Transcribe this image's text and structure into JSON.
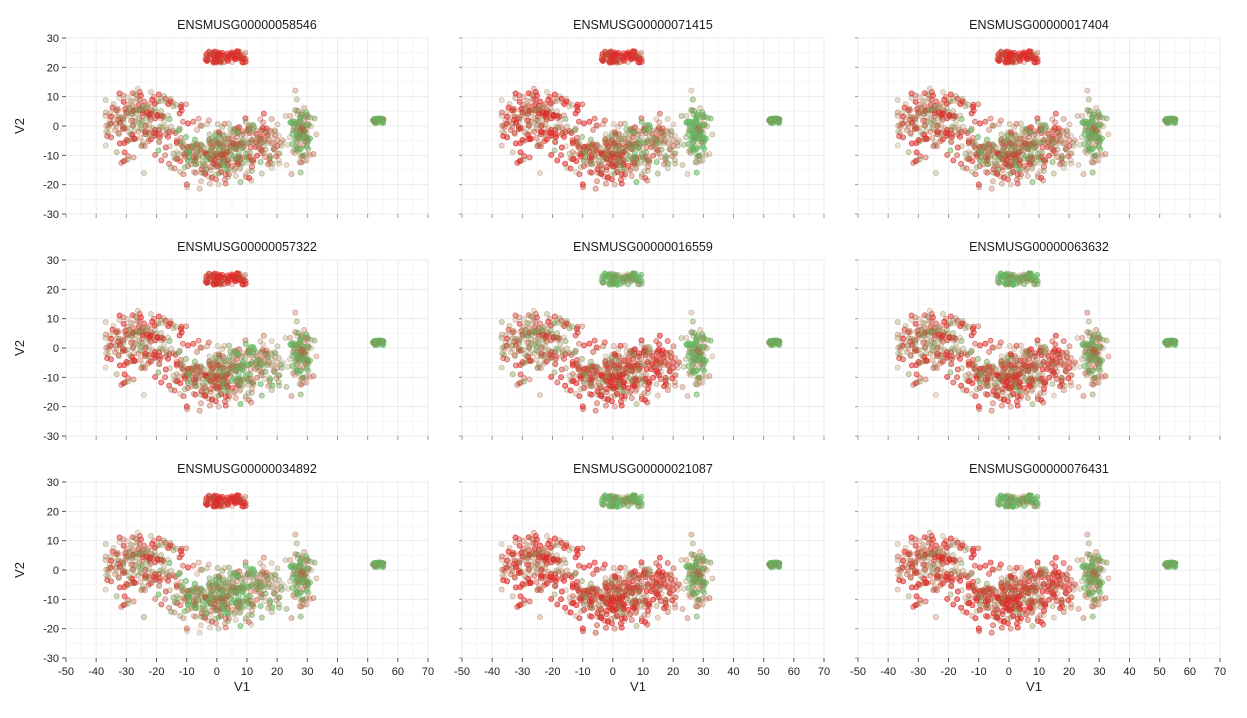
{
  "chart_data": {
    "type": "scatter",
    "layout": "3x3 facet grid",
    "xlabel": "V1",
    "ylabel": "V2",
    "xlim": [
      -50,
      70
    ],
    "ylim": [
      -30,
      30
    ],
    "x_ticks": [
      -50,
      -40,
      -30,
      -20,
      -10,
      0,
      10,
      20,
      30,
      40,
      50,
      60,
      70
    ],
    "y_ticks": [
      -30,
      -20,
      -10,
      0,
      10,
      20,
      30
    ],
    "grid": true,
    "color_low": "#4caf50",
    "color_high": "#e00000",
    "panels": [
      {
        "title": "ENSMUSG00000058546",
        "expression": {
          "top": 0.95,
          "left": 0.6,
          "center_left": 0.45,
          "center_right": 0.55,
          "right": 0.3,
          "far_right": 0.0
        }
      },
      {
        "title": "ENSMUSG00000071415",
        "expression": {
          "top": 0.95,
          "left": 0.75,
          "center_left": 0.6,
          "center_right": 0.45,
          "right": 0.1,
          "far_right": 0.0
        }
      },
      {
        "title": "ENSMUSG00000017404",
        "expression": {
          "top": 0.95,
          "left": 0.65,
          "center_left": 0.5,
          "center_right": 0.55,
          "right": 0.25,
          "far_right": 0.0
        }
      },
      {
        "title": "ENSMUSG00000057322",
        "expression": {
          "top": 0.95,
          "left": 0.65,
          "center_left": 0.55,
          "center_right": 0.35,
          "right": 0.3,
          "far_right": 0.0
        }
      },
      {
        "title": "ENSMUSG00000016559",
        "expression": {
          "top": 0.1,
          "left": 0.55,
          "center_left": 0.65,
          "center_right": 0.75,
          "right": 0.2,
          "far_right": 0.0
        }
      },
      {
        "title": "ENSMUSG00000063632",
        "expression": {
          "top": 0.1,
          "left": 0.6,
          "center_left": 0.6,
          "center_right": 0.7,
          "right": 0.35,
          "far_right": 0.0
        }
      },
      {
        "title": "ENSMUSG00000034892",
        "expression": {
          "top": 0.95,
          "left": 0.6,
          "center_left": 0.35,
          "center_right": 0.35,
          "right": 0.3,
          "far_right": 0.0
        }
      },
      {
        "title": "ENSMUSG00000021087",
        "expression": {
          "top": 0.1,
          "left": 0.75,
          "center_left": 0.7,
          "center_right": 0.75,
          "right": 0.3,
          "far_right": 0.0
        }
      },
      {
        "title": "ENSMUSG00000076431",
        "expression": {
          "top": 0.1,
          "left": 0.7,
          "center_left": 0.7,
          "center_right": 0.75,
          "right": 0.3,
          "far_right": 0.0
        }
      }
    ],
    "clusters": [
      {
        "name": "top",
        "x_center": 3,
        "y_center": 23.5,
        "x_spread": 7,
        "y_spread": 2,
        "count": 90
      },
      {
        "name": "left",
        "x_center": -25,
        "y_center": 2,
        "x_spread": 11,
        "y_spread": 9,
        "count": 230
      },
      {
        "name": "center_left",
        "x_center": -2,
        "y_center": -10,
        "x_spread": 11,
        "y_spread": 8,
        "count": 260
      },
      {
        "name": "center_right",
        "x_center": 12,
        "y_center": -6,
        "x_spread": 9,
        "y_spread": 8,
        "count": 170
      },
      {
        "name": "right",
        "x_center": 28,
        "y_center": -2,
        "x_spread": 3,
        "y_spread": 8,
        "count": 120
      },
      {
        "name": "far_right",
        "x_center": 53.5,
        "y_center": 1.8,
        "x_spread": 1.8,
        "y_spread": 0.8,
        "count": 40
      }
    ]
  }
}
